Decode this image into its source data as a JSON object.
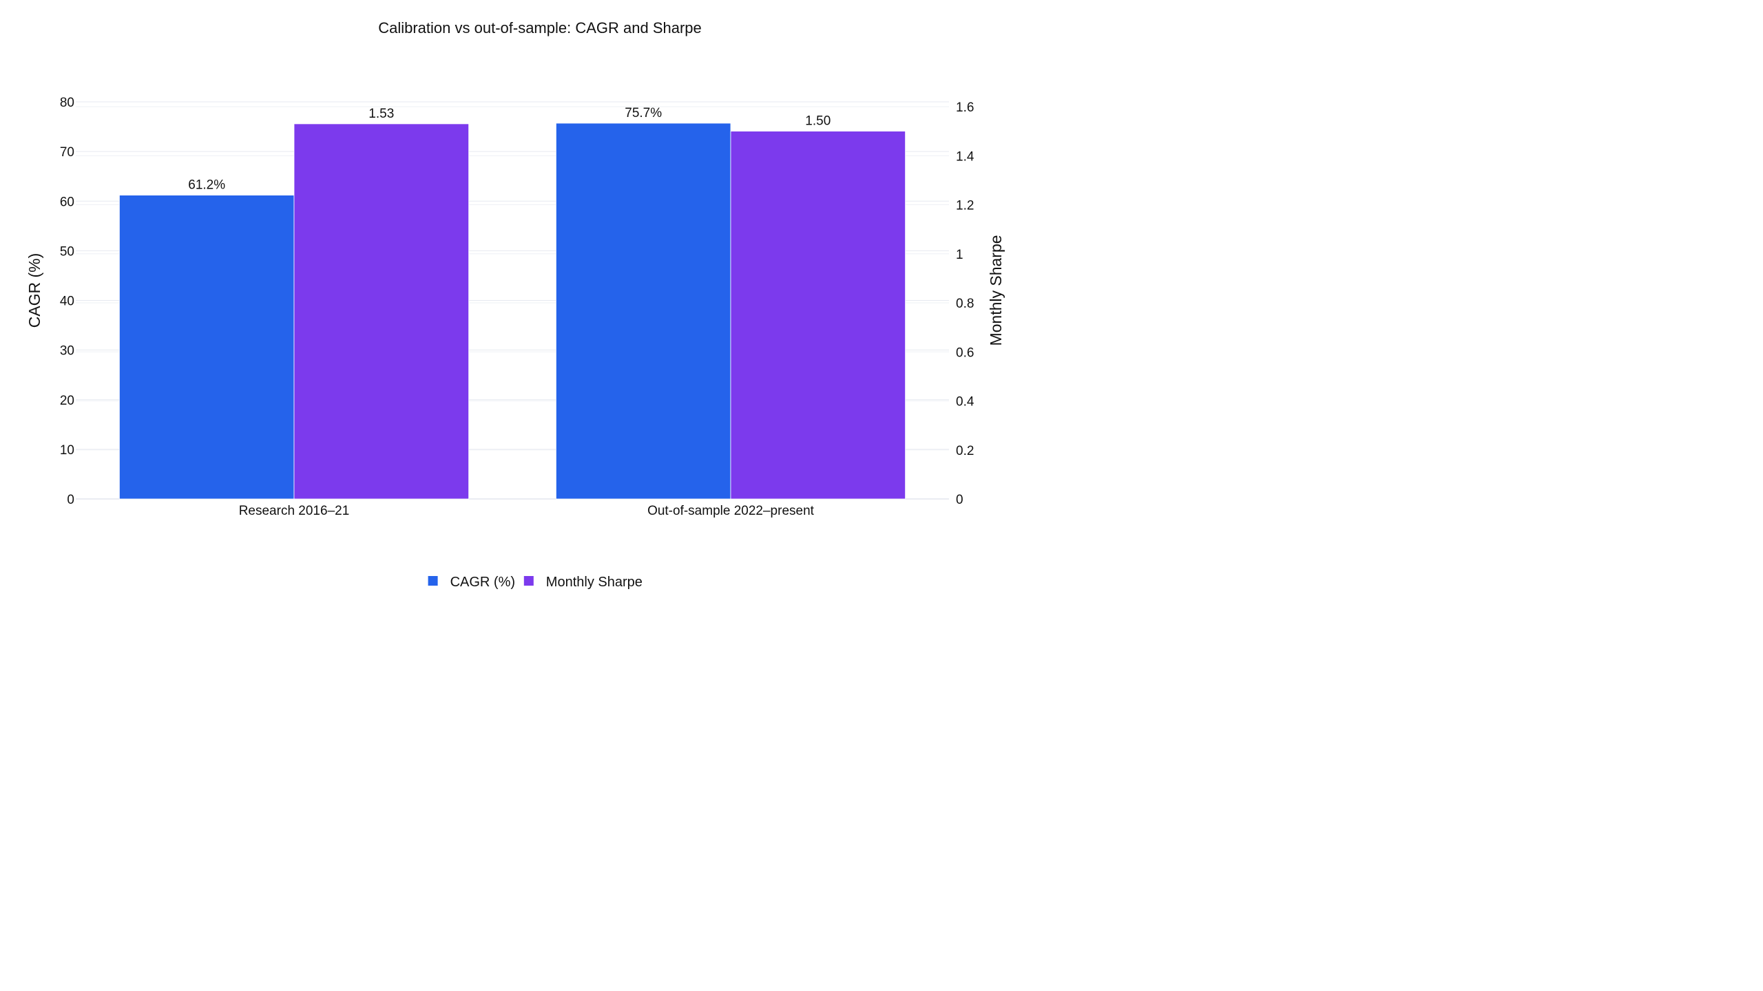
{
  "chart_data": {
    "type": "bar",
    "title": "Calibration vs out-of-sample: CAGR and Sharpe",
    "categories": [
      "Research 2016–21",
      "Out-of-sample 2022–present"
    ],
    "y_left": {
      "label": "CAGR (%)",
      "range": [
        0,
        80
      ],
      "ticks": [
        "0",
        "10",
        "20",
        "30",
        "40",
        "50",
        "60",
        "70",
        "80"
      ]
    },
    "y_right": {
      "label": "Monthly Sharpe",
      "range": [
        0,
        1.6
      ],
      "ticks": [
        "0",
        "0.2",
        "0.4",
        "0.6",
        "0.8",
        "1",
        "1.2",
        "1.4",
        "1.6"
      ]
    },
    "series": [
      {
        "name": "CAGR (%)",
        "axis": "left",
        "color": "#2563eb",
        "values": [
          61.2,
          75.7
        ],
        "labels": [
          "61.2%",
          "75.7%"
        ]
      },
      {
        "name": "Monthly Sharpe",
        "axis": "right",
        "color": "#7c3aed",
        "values": [
          1.53,
          1.5
        ],
        "labels": [
          "1.53",
          "1.50"
        ]
      }
    ],
    "grid": true,
    "legend_position": "bottom-center"
  }
}
